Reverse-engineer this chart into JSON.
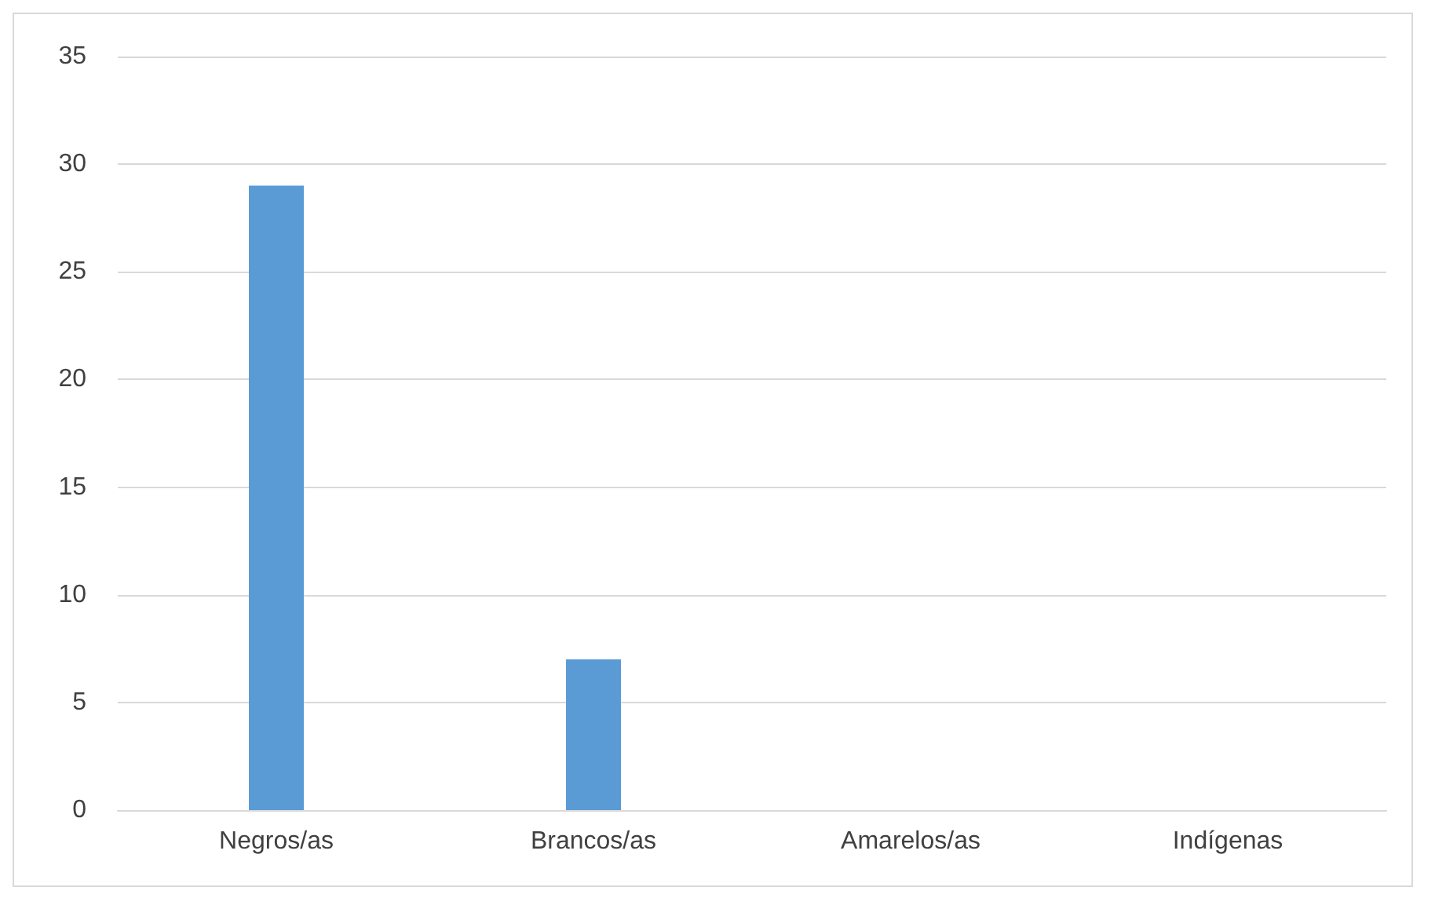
{
  "chart_data": {
    "type": "bar",
    "categories": [
      "Negros/as",
      "Brancos/as",
      "Amarelos/as",
      "Indígenas"
    ],
    "values": [
      29,
      7,
      0,
      0
    ],
    "color": "#5b9bd5",
    "ylim": [
      0,
      35
    ],
    "yticks": [
      0,
      5,
      10,
      15,
      20,
      25,
      30,
      35
    ],
    "grid": "y"
  }
}
